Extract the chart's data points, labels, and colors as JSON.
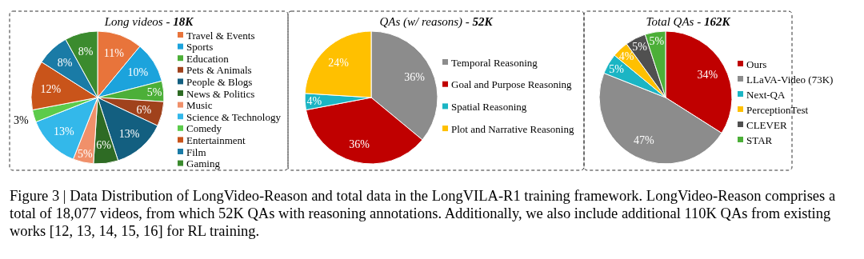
{
  "chart_data": [
    {
      "type": "pie",
      "title": "Long videos - 18K",
      "categories": [
        "Travel & Events",
        "Sports",
        "Education",
        "Pets & Animals",
        "People & Blogs",
        "News & Politics",
        "Music",
        "Science & Technology",
        "Comedy",
        "Entertainment",
        "Film",
        "Gaming"
      ],
      "values": [
        11,
        10,
        5,
        6,
        13,
        6,
        5,
        13,
        3,
        12,
        8,
        8
      ],
      "value_labels": [
        "11%",
        "10%",
        "5%",
        "6%",
        "13%",
        "6%",
        "5%",
        "13%",
        "3%",
        "12%",
        "8%",
        "8%"
      ],
      "colors": [
        "#e8743b",
        "#1ca3dc",
        "#4caf38",
        "#a0421c",
        "#135f80",
        "#2e6b24",
        "#f0906a",
        "#33b8ea",
        "#5ccb4b",
        "#c9541a",
        "#1a7ba6",
        "#3b8b2e"
      ],
      "legend": "right",
      "annotations": [
        "Figure 3 | Data Distribution of LongVideo-Reason and total data in the LongVILA-R1 training framework. LongVideo-Reason comprises a total of 18,077 videos, from which 52K QAs with reasoning annotations. Additionally, we also include additional 110K QAs from existing works [12, 13, 14, 15, 16] for RL training."
      ]
    },
    {
      "type": "pie",
      "title": "QAs (w/ reasons) - 52K",
      "categories": [
        "Temporal Reasoning",
        "Goal and Purpose Reasoning",
        "Spatial Reasoning",
        "Plot and Narrative Reasoning"
      ],
      "values": [
        36,
        36,
        4,
        24
      ],
      "value_labels": [
        "36%",
        "36%",
        "4%",
        "24%"
      ],
      "colors": [
        "#8c8c8c",
        "#c00000",
        "#1bb5c4",
        "#ffc000"
      ],
      "legend": "right"
    },
    {
      "type": "pie",
      "title": "Total QAs - 162K",
      "categories": [
        "Ours",
        "LLaVA-Video (73K)",
        "Next-QA",
        "PerceptionTest",
        "CLEVER",
        "STAR"
      ],
      "values": [
        34,
        47,
        5,
        4,
        5,
        5
      ],
      "value_labels": [
        "34%",
        "47%",
        "5%",
        "4%",
        "5%",
        "5%"
      ],
      "colors": [
        "#c00000",
        "#8c8c8c",
        "#1bb5c4",
        "#ffc000",
        "#505050",
        "#4caf38"
      ],
      "legend": "right"
    }
  ]
}
